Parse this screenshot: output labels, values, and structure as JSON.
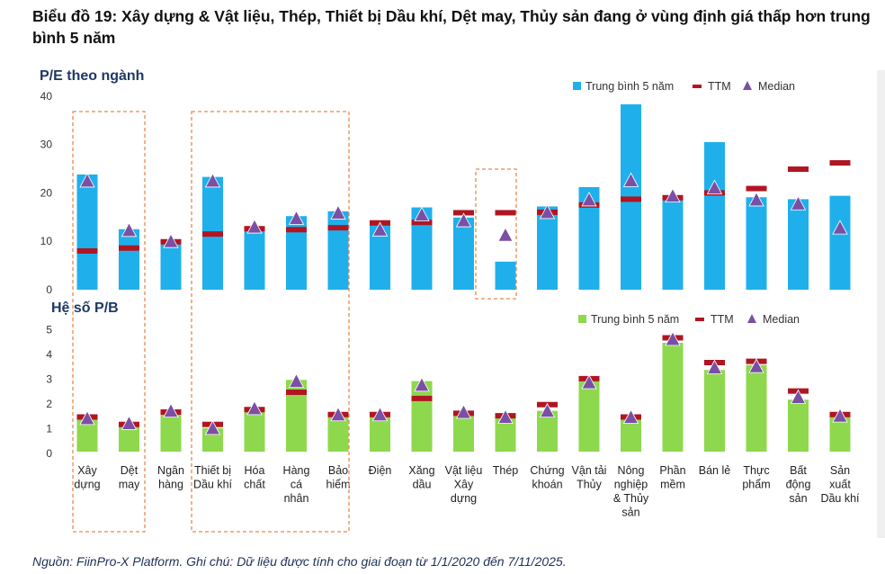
{
  "title": "Biểu đồ 19: Xây dựng & Vật liệu, Thép, Thiết bị Dầu khí, Dệt may, Thủy sản đang ở vùng định giá thấp hơn trung bình 5 năm",
  "source": "Nguồn: FiinPro-X Platform. Ghi chú: Dữ liệu được tính cho giai đoạn từ 1/1/2020 đến 7/11/2025.",
  "colors": {
    "pe_bar": "#1fb0ec",
    "pb_bar": "#8ed84e",
    "ttm": "#b01622",
    "median": "#7b4fa5",
    "highlight": "#e8894d"
  },
  "chart_data": [
    {
      "type": "bar",
      "title": "P/E theo ngành",
      "ylim": [
        0,
        40
      ],
      "yticks": [
        "0",
        "10",
        "20",
        "30",
        "40"
      ],
      "legend": [
        "Trung bình 5 năm",
        "TTM",
        "Median"
      ],
      "categories": [
        "Xây dựng",
        "Dệt may",
        "Ngân hàng",
        "Thiết bị Dầu khí",
        "Hóa chất",
        "Hàng cá nhân",
        "Bảo hiểm",
        "Điện",
        "Xăng dầu",
        "Vật liệu Xây dựng",
        "Thép",
        "Chứng khoán",
        "Vận tải Thủy",
        "Nông nghiệp & Thủy sản",
        "Phần mềm",
        "Bán lẻ",
        "Thực phẩm",
        "Bất động sản",
        "Sản xuất Dầu khí"
      ],
      "series": [
        {
          "name": "Trung bình 5 năm",
          "values": [
            23.8,
            12.5,
            9.5,
            23.3,
            12.9,
            15.2,
            16.2,
            13.8,
            17,
            14.9,
            5.8,
            17.2,
            21.2,
            38.3,
            18.9,
            30.5,
            19.1,
            18.7,
            19.4
          ]
        },
        {
          "name": "TTM",
          "values": [
            8,
            8.6,
            9.9,
            11.5,
            12.6,
            12.4,
            12.8,
            13.8,
            13.9,
            15.9,
            15.9,
            16,
            17.5,
            18.7,
            19,
            20,
            20.9,
            24.9,
            26.2
          ]
        },
        {
          "name": "Median",
          "values": [
            22.5,
            12.3,
            10,
            22.5,
            13,
            14.8,
            15.9,
            12.4,
            15.5,
            14.3,
            11.3,
            16,
            18.6,
            22.6,
            19.4,
            21.1,
            18.6,
            17.8,
            12.8
          ]
        }
      ]
    },
    {
      "type": "bar",
      "title": "Hệ số P/B",
      "ylim": [
        0,
        5
      ],
      "yticks": [
        "0",
        "1",
        "2",
        "3",
        "4",
        "5"
      ],
      "legend": [
        "Trung bình 5 năm",
        "TTM",
        "Median"
      ],
      "categories": [
        "Xây dựng",
        "Dệt may",
        "Ngân hàng",
        "Thiết bị Dầu khí",
        "Hóa chất",
        "Hàng cá nhân",
        "Bảo hiểm",
        "Điện",
        "Xăng dầu",
        "Vật liệu Xây dựng",
        "Thép",
        "Chứng khoán",
        "Vận tải Thủy",
        "Nông nghiệp & Thủy sản",
        "Phần mềm",
        "Bán lẻ",
        "Thực phẩm",
        "Bất động sản",
        "Sản xuất Dầu khí"
      ],
      "series": [
        {
          "name": "Trung bình 5 năm",
          "values": [
            1.45,
            1.2,
            1.7,
            0.95,
            1.8,
            2.9,
            1.55,
            1.45,
            2.85,
            1.55,
            1.4,
            1.65,
            2.85,
            1.3,
            4.4,
            3.3,
            3.5,
            2.1,
            1.45
          ]
        },
        {
          "name": "TTM",
          "values": [
            1.4,
            1.1,
            1.6,
            1.1,
            1.7,
            2.4,
            1.5,
            1.5,
            2.15,
            1.55,
            1.45,
            1.9,
            2.95,
            1.4,
            4.6,
            3.6,
            3.65,
            2.45,
            1.5
          ]
        },
        {
          "name": "Median",
          "values": [
            1.35,
            1.15,
            1.65,
            0.95,
            1.75,
            2.85,
            1.5,
            1.5,
            2.7,
            1.6,
            1.4,
            1.65,
            2.8,
            1.4,
            4.55,
            3.4,
            3.45,
            2.2,
            1.45
          ]
        }
      ]
    }
  ],
  "xlabels": [
    [
      "Xây",
      "dựng"
    ],
    [
      "Dệt",
      "may"
    ],
    [
      "Ngân",
      "hàng"
    ],
    [
      "Thiết bị",
      "Dầu khí"
    ],
    [
      "Hóa",
      "chất"
    ],
    [
      "Hàng",
      "cá",
      "nhân"
    ],
    [
      "Bảo",
      "hiểm"
    ],
    [
      "Điện"
    ],
    [
      "Xăng",
      "dầu"
    ],
    [
      "Vật liệu",
      "Xây",
      "dựng"
    ],
    [
      "Thép"
    ],
    [
      "Chứng",
      "khoán"
    ],
    [
      "Vận tải",
      "Thủy"
    ],
    [
      "Nông",
      "nghiệp",
      "& Thủy",
      "sản"
    ],
    [
      "Phần",
      "mềm"
    ],
    [
      "Bán lẻ"
    ],
    [
      "Thực",
      "phẩm"
    ],
    [
      "Bất",
      "động",
      "sản"
    ],
    [
      "Sản",
      "xuất",
      "Dầu khí"
    ]
  ]
}
